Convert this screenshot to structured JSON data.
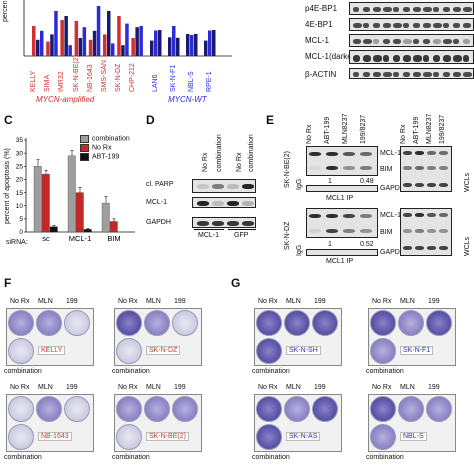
{
  "panel_a": {
    "ylabel": "percen",
    "cell_lines_amp": [
      "KELLY",
      "SIMA",
      "IMR32",
      "SK-N-BE(2)",
      "NB-1643",
      "SMS-SAN",
      "SK-N-DZ",
      "CHP-212"
    ],
    "cell_lines_wt": [
      "LAN6",
      "SK-N-F1",
      "NBL-S",
      "RPE-1"
    ],
    "group_amp": "MYCN-amplified",
    "group_wt": "MYCN-WT",
    "colors": {
      "red": "#d32f2f",
      "blue": "#2b2bd9",
      "navy": "#1a1a6e"
    }
  },
  "panel_b": {
    "labels": [
      "p4E-BP1",
      "4E-BP1",
      "MCL-1",
      "MCL-1(darker)",
      "β-ACTIN"
    ]
  },
  "panel_c": {
    "letter": "C",
    "chart_data": {
      "type": "bar",
      "ylabel": "percent of apoptosis (%)",
      "xlabel": "siRNA:",
      "categories": [
        "sc",
        "MCL-1",
        "BIM"
      ],
      "yticks": [
        0,
        5,
        10,
        15,
        20,
        25,
        30,
        35
      ],
      "ylim": [
        0,
        35
      ],
      "series": [
        {
          "name": "combination",
          "color": "#9e9e9e",
          "values": [
            25,
            29,
            11
          ],
          "errors": [
            2.5,
            2.0,
            2.5
          ]
        },
        {
          "name": "No Rx",
          "color": "#c62828",
          "values": [
            22,
            15,
            4
          ],
          "errors": [
            1.5,
            2.0,
            1.0
          ]
        },
        {
          "name": "ABT-199",
          "color": "#111111",
          "values": [
            2,
            1,
            0
          ],
          "errors": [
            0.5,
            0.4,
            0
          ]
        }
      ]
    }
  },
  "panel_d": {
    "letter": "D",
    "lane_labels": [
      "No Rx",
      "combination",
      "No Rx",
      "combination"
    ],
    "row_labels": [
      "cl. PARP",
      "MCL-1",
      "GAPDH"
    ],
    "group_labels": [
      "MCL-1",
      "GFP"
    ]
  },
  "panel_e": {
    "letter": "E",
    "lane_labels": [
      "No Rx",
      "ABT-199",
      "MLN8237",
      "199/8237"
    ],
    "cell_top": "SK-N-BE(2)",
    "cell_bottom": "SK-N-DZ",
    "row_labels_ip": [
      "MCL-1",
      "BIM"
    ],
    "row_labels_wcl": [
      "MCL-1",
      "BIM",
      "GAPDH"
    ],
    "igg": "IgG",
    "ip_label": "MCL1 IP",
    "wcls": "WCLs",
    "values_top": [
      "1",
      "0.48"
    ],
    "values_bottom": [
      "1",
      "0.52"
    ]
  },
  "panel_f": {
    "letter": "F",
    "treat_labels": [
      "No Rx",
      "MLN",
      "199"
    ],
    "combination": "combination",
    "cells": [
      "KELLY",
      "SK-N-DZ",
      "NB-1643",
      "SK-N-BE(2)"
    ]
  },
  "panel_g": {
    "letter": "G",
    "treat_labels": [
      "No Rx",
      "MLN",
      "199"
    ],
    "combination": "combination",
    "cells": [
      "SK-N-SH",
      "SK-N-F1",
      "SK-N-AS",
      "NBL-S"
    ]
  }
}
